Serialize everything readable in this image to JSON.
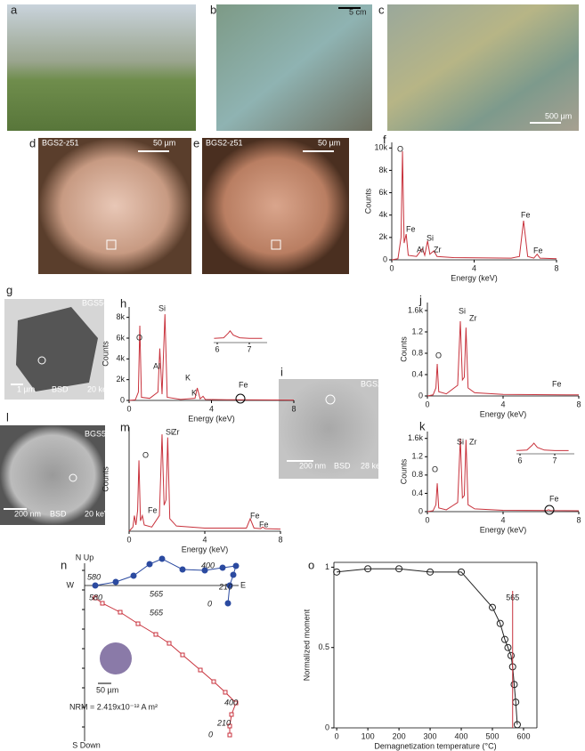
{
  "panel_labels": [
    "a",
    "b",
    "c",
    "d",
    "e",
    "f",
    "g",
    "h",
    "i",
    "j",
    "k",
    "l",
    "m",
    "n",
    "o"
  ],
  "photos": {
    "b": [
      "5 cm"
    ],
    "c": [
      "500 µm"
    ],
    "d": [
      "BGS2-z51",
      "50 µm"
    ],
    "e": [
      "BGS2-z51",
      "50 µm"
    ],
    "g": [
      "BGS5-z30",
      "1 µm",
      "BSD",
      "20 keV"
    ],
    "i": [
      "BGS2-z50",
      "200 nm",
      "BSD",
      "28 keV"
    ],
    "l": [
      "BGS5-z36",
      "200 nm",
      "BSD",
      "20 keV"
    ]
  },
  "chart_data": [
    {
      "type": "spectrum",
      "x": [
        0,
        0.3,
        0.45,
        0.52,
        0.6,
        0.7,
        0.8,
        1.2,
        1.49,
        1.6,
        1.74,
        1.85,
        2.04,
        2.2,
        3,
        5.8,
        6.2,
        6.4,
        6.6,
        6.9,
        7.06,
        7.2,
        8
      ],
      "values": [
        0,
        100,
        2000,
        9700,
        1500,
        2300,
        400,
        300,
        1000,
        400,
        1700,
        500,
        800,
        300,
        200,
        150,
        300,
        3500,
        300,
        150,
        500,
        150,
        100
      ],
      "color": "#c8323c",
      "xlim": [
        0,
        8
      ],
      "xticks": [
        0,
        4,
        8
      ],
      "ylim": [
        0,
        10500
      ],
      "yticks": [
        0,
        {
          "value": 2000,
          "label": "2k"
        },
        {
          "value": 4000,
          "label": "4k"
        },
        {
          "value": 6000,
          "label": "6k"
        },
        {
          "value": 8000,
          "label": "8k"
        },
        {
          "value": 10000,
          "label": "10k"
        }
      ],
      "xlabel": "Energy (keV)",
      "ylabel": "Counts",
      "annotations": [
        "O",
        "Fe",
        "Al",
        "Si",
        "Zr",
        "Fe",
        "Fe"
      ]
    },
    {
      "type": "spectrum",
      "x": [
        0,
        0.3,
        0.45,
        0.52,
        0.6,
        1.0,
        1.4,
        1.49,
        1.6,
        1.74,
        1.85,
        2.5,
        3.2,
        3.31,
        3.45,
        3.59,
        3.7,
        5,
        8
      ],
      "values": [
        0,
        50,
        800,
        7200,
        300,
        200,
        800,
        5000,
        600,
        8300,
        300,
        100,
        200,
        1200,
        150,
        400,
        100,
        60,
        30
      ],
      "color": "#c8323c",
      "xlim": [
        0,
        8
      ],
      "xticks": [
        0,
        4,
        8
      ],
      "ylim": [
        0,
        9000
      ],
      "yticks": [
        0,
        {
          "value": 2000,
          "label": "2k"
        },
        {
          "value": 4000,
          "label": "4k"
        },
        {
          "value": 6000,
          "label": "6k"
        },
        {
          "value": 8000,
          "label": "8k"
        }
      ],
      "xlabel": "Energy (keV)",
      "ylabel": "Counts",
      "annotations": [
        "O",
        "Al",
        "Si",
        "K",
        "K",
        "Fe"
      ],
      "inset": {
        "x": [
          5.9,
          6.2,
          6.35,
          6.4,
          6.5,
          6.7,
          7,
          7.4
        ],
        "values": [
          40,
          45,
          90,
          110,
          70,
          45,
          40,
          40
        ],
        "xticks": [
          6,
          7
        ]
      }
    },
    {
      "type": "spectrum",
      "x": [
        0,
        0.3,
        0.45,
        0.52,
        0.6,
        1.0,
        1.6,
        1.74,
        1.85,
        1.95,
        2.04,
        2.15,
        2.5,
        4,
        8
      ],
      "values": [
        0,
        20,
        150,
        600,
        80,
        40,
        200,
        1400,
        300,
        350,
        1280,
        150,
        60,
        30,
        20
      ],
      "color": "#c8323c",
      "xlim": [
        0,
        8
      ],
      "xticks": [
        0,
        4,
        8
      ],
      "ylim": [
        0,
        1750
      ],
      "yticks": [
        0,
        {
          "value": 400,
          "label": "0.4"
        },
        {
          "value": 800,
          "label": "0.8"
        },
        {
          "value": 1200,
          "label": "1.2"
        },
        {
          "value": 1600,
          "label": "1.6k"
        }
      ],
      "xlabel": "Energy (keV)",
      "ylabel": "Counts",
      "annotations": [
        "O",
        "Si",
        "Zr",
        "Fe"
      ]
    },
    {
      "type": "spectrum",
      "x": [
        0,
        0.3,
        0.45,
        0.52,
        0.6,
        1.0,
        1.6,
        1.74,
        1.85,
        1.95,
        2.04,
        2.15,
        2.5,
        4,
        6.3,
        6.4,
        6.5,
        8
      ],
      "values": [
        0,
        20,
        150,
        620,
        80,
        40,
        200,
        1600,
        300,
        350,
        1570,
        150,
        60,
        30,
        25,
        40,
        25,
        20
      ],
      "color": "#c8323c",
      "xlim": [
        0,
        8
      ],
      "xticks": [
        0,
        4,
        8
      ],
      "ylim": [
        0,
        1750
      ],
      "yticks": [
        0,
        {
          "value": 400,
          "label": "0.4"
        },
        {
          "value": 800,
          "label": "0.8"
        },
        {
          "value": 1200,
          "label": "1.2"
        },
        {
          "value": 1600,
          "label": "1.6k"
        }
      ],
      "xlabel": "Energy (keV)",
      "ylabel": "Counts",
      "annotations": [
        "O",
        "Si",
        "Zr",
        "Fe"
      ],
      "inset": {
        "x": [
          5.9,
          6.2,
          6.35,
          6.4,
          6.5,
          6.7,
          7,
          7.4
        ],
        "values": [
          30,
          35,
          80,
          100,
          60,
          35,
          30,
          30
        ],
        "xticks": [
          6,
          7
        ]
      }
    },
    {
      "type": "spectrum",
      "x": [
        0,
        0.2,
        0.28,
        0.36,
        0.45,
        0.52,
        0.6,
        0.7,
        0.8,
        1.2,
        1.6,
        1.74,
        1.85,
        1.95,
        2.04,
        2.15,
        2.5,
        4,
        6.2,
        6.4,
        6.6,
        6.95,
        7.06,
        7.2,
        8
      ],
      "values": [
        0,
        40,
        150,
        60,
        200,
        680,
        100,
        150,
        60,
        40,
        150,
        930,
        250,
        300,
        900,
        120,
        50,
        30,
        30,
        120,
        30,
        25,
        40,
        25,
        20
      ],
      "color": "#c8323c",
      "xlim": [
        0,
        8
      ],
      "xticks": [
        0,
        4,
        8
      ],
      "ylim": [
        0,
        1000
      ],
      "yticks": [],
      "xlabel": "Energy (keV)",
      "ylabel": "Counts",
      "annotations": [
        "O",
        "Fe",
        "Si",
        "Zr",
        "Fe",
        "Fe"
      ]
    },
    {
      "type": "zijderveld",
      "xlim": [
        0,
        18
      ],
      "ylim": [
        -17.5,
        2.5
      ],
      "axis_labels": [
        "N Up",
        "S Down",
        "W",
        "E"
      ],
      "scale_bar": "50 µm",
      "note": "NRM = 2.419x10⁻¹² A m²",
      "series": [
        {
          "color": "#2b4aa0",
          "x": [
            16.1,
            16.3,
            16.7,
            17.0,
            15.5,
            13.5,
            11.0,
            8.7,
            7.3,
            5.5,
            3.5,
            1.2
          ],
          "values": [
            -2.0,
            0,
            1.2,
            2.2,
            2.0,
            1.7,
            1.8,
            3.0,
            2.4,
            1.1,
            0.4,
            0
          ],
          "annotations": [
            "0",
            "210",
            "400",
            "565",
            "580"
          ]
        },
        {
          "color": "#c8323c",
          "x": [
            16.3,
            16.3,
            16.5,
            17.0,
            15.8,
            14.5,
            13.0,
            11.0,
            9.5,
            8.0,
            6.0,
            4.0,
            2.0,
            1.2
          ],
          "values": [
            -16.8,
            -15.8,
            -14.5,
            -13.2,
            -12.0,
            -10.8,
            -9.5,
            -7.8,
            -6.5,
            -5.5,
            -4.3,
            -3.0,
            -2.0,
            -1.4
          ],
          "annotations": [
            "0",
            "210",
            "400",
            "565",
            "580"
          ]
        }
      ]
    },
    {
      "type": "line",
      "x": [
        0,
        100,
        200,
        300,
        400,
        500,
        525,
        540,
        550,
        560,
        565,
        570,
        575,
        580
      ],
      "values": [
        0.97,
        0.99,
        0.99,
        0.97,
        0.97,
        0.75,
        0.65,
        0.55,
        0.5,
        0.45,
        0.38,
        0.27,
        0.16,
        0.02
      ],
      "color": "#222222",
      "xlim": [
        -9,
        643
      ],
      "xticks": [
        0,
        100,
        200,
        300,
        400,
        500,
        600
      ],
      "ylim": [
        0,
        1.03
      ],
      "yticks": [
        0,
        0.5,
        1
      ],
      "xlabel": "Demagnetization temperature (°C)",
      "ylabel": "Normalized moment",
      "vline": 565,
      "vline_color": "#c8323c"
    }
  ]
}
